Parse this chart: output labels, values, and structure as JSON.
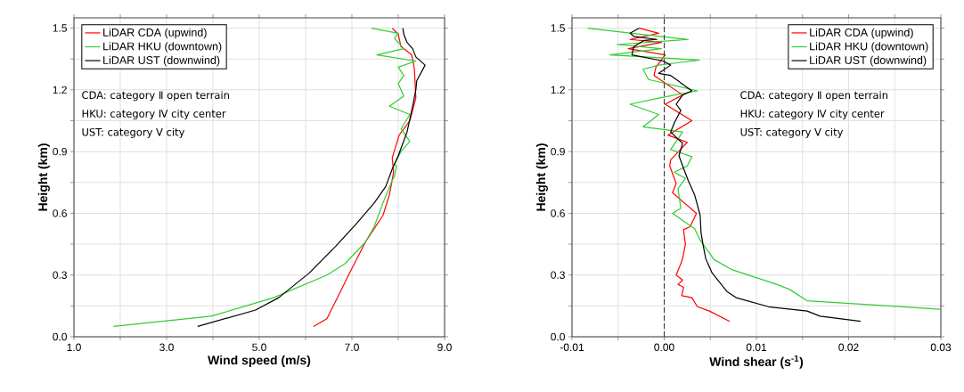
{
  "chart_data": [
    {
      "type": "line",
      "xlabel": "Wind speed (m/s)",
      "ylabel": "Height (km)",
      "xlim": [
        1,
        9
      ],
      "ylim": [
        0,
        1.55
      ],
      "xticks": [
        {
          "value": 1,
          "label": "1.0"
        },
        {
          "value": 2,
          "label": null
        },
        {
          "value": 3,
          "label": "3.0"
        },
        {
          "value": 4,
          "label": null
        },
        {
          "value": 5,
          "label": "5.0"
        },
        {
          "value": 6,
          "label": null
        },
        {
          "value": 7,
          "label": "7.0"
        },
        {
          "value": 8,
          "label": null
        },
        {
          "value": 9,
          "label": "9.0"
        }
      ],
      "yticks": [
        {
          "value": 0,
          "label": "0.0"
        },
        {
          "value": 0.15,
          "label": null
        },
        {
          "value": 0.3,
          "label": "0.3"
        },
        {
          "value": 0.45,
          "label": null
        },
        {
          "value": 0.6,
          "label": "0.6"
        },
        {
          "value": 0.75,
          "label": null
        },
        {
          "value": 0.9,
          "label": "0.9"
        },
        {
          "value": 1.05,
          "label": null
        },
        {
          "value": 1.2,
          "label": "1.2"
        },
        {
          "value": 1.35,
          "label": null
        },
        {
          "value": 1.5,
          "label": "1.5"
        }
      ],
      "grid": true,
      "legend": "top left",
      "annotations": [
        "CDA: category Ⅱ open terrain",
        "HKU: category Ⅳ city center",
        "UST: category Ⅴ city"
      ],
      "series": [
        {
          "name": "LiDAR CDA (upwind)",
          "color": "#ff0000",
          "x": [
            6.17,
            6.46,
            6.71,
            6.94,
            7.29,
            7.67,
            7.81,
            7.9,
            7.87,
            8.02,
            8.25,
            8.38,
            8.35,
            8.29,
            8.06,
            8.0,
            7.87
          ],
          "values": [
            0.05,
            0.088,
            0.2,
            0.305,
            0.46,
            0.59,
            0.69,
            0.8,
            0.87,
            0.98,
            1.05,
            1.16,
            1.3,
            1.37,
            1.41,
            1.47,
            1.5
          ]
        },
        {
          "name": "LiDAR HKU (downtown)",
          "color": "#33cc33",
          "x": [
            1.85,
            3.96,
            5.31,
            6.46,
            6.85,
            7.29,
            7.48,
            7.67,
            7.87,
            7.92,
            7.96,
            7.92,
            8.06,
            8.25,
            8.06,
            8.25,
            7.81,
            8.12,
            8.0,
            8.12,
            8.0,
            8.38,
            7.54,
            8.12,
            7.92,
            8.0,
            7.42
          ],
          "values": [
            0.05,
            0.1,
            0.19,
            0.3,
            0.355,
            0.46,
            0.535,
            0.65,
            0.76,
            0.78,
            0.83,
            0.84,
            0.9,
            0.95,
            1.01,
            1.08,
            1.12,
            1.17,
            1.23,
            1.27,
            1.31,
            1.34,
            1.37,
            1.4,
            1.45,
            1.475,
            1.5
          ]
        },
        {
          "name": "LiDAR UST (downwind)",
          "color": "#000000",
          "x": [
            3.67,
            4.92,
            5.42,
            6.08,
            6.65,
            7.1,
            7.48,
            7.73,
            7.87,
            8.0,
            8.19,
            8.31,
            8.38,
            8.4,
            8.58,
            8.38,
            8.31,
            8.19,
            8.12,
            8.1
          ],
          "values": [
            0.05,
            0.13,
            0.19,
            0.31,
            0.44,
            0.55,
            0.65,
            0.73,
            0.815,
            0.88,
            0.995,
            1.12,
            1.2,
            1.245,
            1.32,
            1.36,
            1.4,
            1.43,
            1.47,
            1.5
          ]
        }
      ]
    },
    {
      "type": "line",
      "xlabel": "Wind shear (s$^{-1}$)",
      "ylabel": "Height (km)",
      "xlim": [
        -0.01,
        0.03
      ],
      "ylim": [
        0,
        1.55
      ],
      "xticks": [
        {
          "value": -0.01,
          "label": "-0.01"
        },
        {
          "value": -0.005,
          "label": null
        },
        {
          "value": 0,
          "label": "0.00"
        },
        {
          "value": 0.005,
          "label": null
        },
        {
          "value": 0.01,
          "label": "0.01"
        },
        {
          "value": 0.015,
          "label": null
        },
        {
          "value": 0.02,
          "label": "0.02"
        },
        {
          "value": 0.025,
          "label": null
        },
        {
          "value": 0.03,
          "label": "0.03"
        }
      ],
      "yticks": [
        {
          "value": 0,
          "label": "0.0"
        },
        {
          "value": 0.15,
          "label": null
        },
        {
          "value": 0.3,
          "label": "0.3"
        },
        {
          "value": 0.45,
          "label": null
        },
        {
          "value": 0.6,
          "label": "0.6"
        },
        {
          "value": 0.75,
          "label": null
        },
        {
          "value": 0.9,
          "label": "0.9"
        },
        {
          "value": 1.05,
          "label": null
        },
        {
          "value": 1.2,
          "label": "1.2"
        },
        {
          "value": 1.35,
          "label": null
        },
        {
          "value": 1.5,
          "label": "1.5"
        }
      ],
      "grid": true,
      "legend": "top right",
      "ref_lines": [
        {
          "axis": "x",
          "value": 0,
          "color": "#333333",
          "line_style": "dashed"
        }
      ],
      "annotations": [
        "CDA: category Ⅱ open terrain",
        "HKU: category Ⅳ city center",
        "UST: category Ⅴ city"
      ],
      "series": [
        {
          "name": "LiDAR CDA (upwind)",
          "color": "#ff0000",
          "x": [
            0.0071,
            0.0049,
            0.0036,
            0.003,
            0.0019,
            0.0021,
            0.0015,
            0.002,
            0.0013,
            0.0018,
            0.002,
            0.0023,
            0.0021,
            0.0028,
            0.0035,
            0.0009,
            0.0013,
            0.0006,
            0.0007,
            0.0025,
            0.0004,
            0.003,
            0.0001,
            0.002,
            -0.0011,
            -0.0009,
            0.0001,
            -0.0039,
            -0.0003,
            -0.0037,
            -0.0006,
            -0.0027
          ],
          "values": [
            0.075,
            0.125,
            0.146,
            0.19,
            0.2,
            0.24,
            0.255,
            0.275,
            0.3,
            0.355,
            0.38,
            0.45,
            0.52,
            0.535,
            0.6,
            0.7,
            0.745,
            0.83,
            0.86,
            0.945,
            0.98,
            1.05,
            1.13,
            1.175,
            1.27,
            1.31,
            1.37,
            1.4,
            1.43,
            1.445,
            1.475,
            1.5
          ]
        },
        {
          "name": "LiDAR HKU (downtown)",
          "color": "#33cc33",
          "x": [
            0.0299,
            0.0155,
            0.0136,
            0.0122,
            0.0074,
            0.0054,
            0.0039,
            0.0033,
            0.0009,
            0.0018,
            0.0015,
            0.0023,
            0.0011,
            0.0025,
            0.003,
            0.0007,
            0.002,
            -0.0023,
            -0.0006,
            -0.0037,
            -0.0006,
            0.0036,
            -0.0017,
            -0.0023,
            -0.0006,
            0.0038,
            -0.0059,
            -0.0003,
            -0.0051,
            0.0026,
            -0.0035,
            -0.0083
          ],
          "values": [
            0.134,
            0.175,
            0.23,
            0.255,
            0.325,
            0.375,
            0.47,
            0.525,
            0.6,
            0.625,
            0.72,
            0.77,
            0.8,
            0.83,
            0.875,
            0.91,
            0.995,
            1.02,
            1.08,
            1.13,
            1.16,
            1.195,
            1.25,
            1.3,
            1.32,
            1.345,
            1.37,
            1.4,
            1.42,
            1.445,
            1.475,
            1.5
          ]
        },
        {
          "name": "LiDAR UST (downwind)",
          "color": "#000000",
          "x": [
            0.0213,
            0.0169,
            0.0155,
            0.0113,
            0.0078,
            0.0068,
            0.0052,
            0.0045,
            0.0042,
            0.004,
            0.0039,
            0.0033,
            0.0026,
            0.002,
            0.0016,
            0.002,
            0.0007,
            0.0011,
            0.0018,
            0.0013,
            0.002,
            0.003,
            0.0007,
            -0.0006,
            0.0007,
            -0.0001,
            -0.0035,
            -0.0033,
            -0.0022,
            -0.0008,
            -0.0033,
            -0.0037,
            -0.0027
          ],
          "values": [
            0.075,
            0.1,
            0.125,
            0.146,
            0.19,
            0.22,
            0.31,
            0.38,
            0.45,
            0.505,
            0.59,
            0.69,
            0.76,
            0.83,
            0.88,
            0.94,
            0.995,
            1.04,
            1.1,
            1.13,
            1.175,
            1.195,
            1.27,
            1.28,
            1.32,
            1.34,
            1.37,
            1.41,
            1.44,
            1.445,
            1.46,
            1.475,
            1.5
          ]
        }
      ]
    }
  ]
}
